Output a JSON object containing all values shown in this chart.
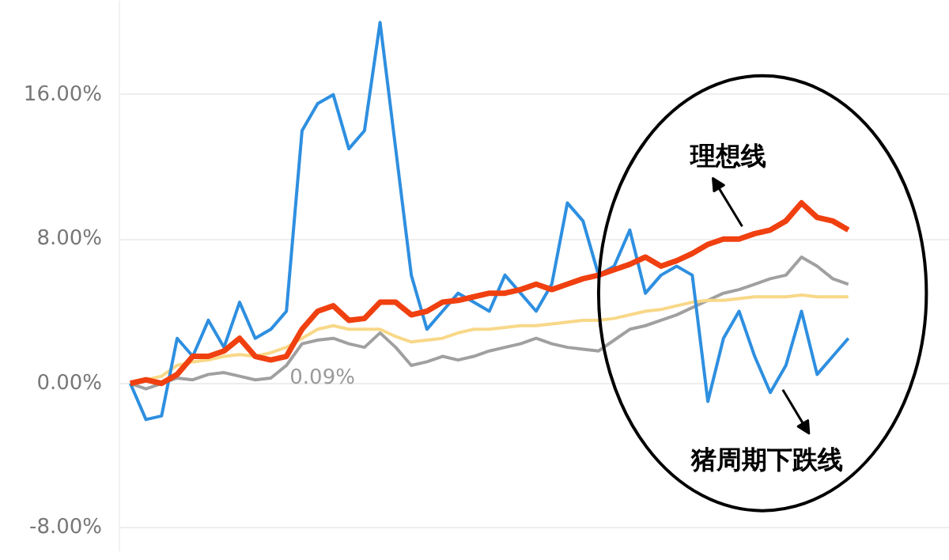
{
  "chart_data": {
    "type": "line",
    "categories": [
      null,
      null,
      null,
      null,
      null,
      null,
      null,
      null,
      null,
      null,
      null,
      null,
      null,
      null,
      null,
      null,
      null,
      null,
      null,
      null,
      null,
      null,
      null,
      null,
      null,
      null,
      null,
      null,
      null,
      null,
      null,
      null,
      null,
      null,
      null,
      null,
      null,
      null,
      null,
      null,
      null,
      null,
      null,
      null,
      null,
      null,
      null
    ],
    "series": [
      {
        "color": "#a0a0a0",
        "values": [
          0,
          -0.3,
          0,
          0.3,
          0.2,
          0.5,
          0.6,
          0.4,
          0.2,
          0.3,
          1.0,
          2.2,
          2.4,
          2.5,
          2.2,
          2.0,
          2.8,
          2.0,
          1.0,
          1.2,
          1.5,
          1.3,
          1.5,
          1.8,
          2.0,
          2.2,
          2.5,
          2.2,
          2.0,
          1.9,
          1.8,
          2.4,
          3.0,
          3.2,
          3.5,
          3.8,
          4.2,
          4.6,
          5.0,
          5.2,
          5.5,
          5.8,
          6.0,
          7.0,
          6.5,
          5.8,
          5.5
        ]
      },
      {
        "color": "#f8d888",
        "values": [
          0,
          0.2,
          0.4,
          1.0,
          1.2,
          1.3,
          1.5,
          1.6,
          1.5,
          1.7,
          2.0,
          2.5,
          3.0,
          3.2,
          3.0,
          3.0,
          3.0,
          2.6,
          2.3,
          2.4,
          2.5,
          2.8,
          3.0,
          3.0,
          3.1,
          3.2,
          3.2,
          3.3,
          3.4,
          3.5,
          3.5,
          3.6,
          3.8,
          4.0,
          4.1,
          4.3,
          4.5,
          4.6,
          4.6,
          4.7,
          4.8,
          4.8,
          4.8,
          4.9,
          4.8,
          4.8,
          4.8
        ]
      },
      {
        "color": "#2e8fe0",
        "values": [
          0,
          -2.0,
          -1.8,
          2.5,
          1.5,
          3.5,
          2.0,
          4.5,
          2.5,
          3.0,
          4.0,
          14.0,
          15.5,
          16.0,
          13.0,
          14.0,
          20.0,
          13.0,
          6.0,
          3.0,
          4.0,
          5.0,
          4.5,
          4.0,
          6.0,
          5.0,
          4.0,
          5.5,
          10.0,
          9.0,
          6.0,
          6.5,
          8.5,
          5.0,
          6.0,
          6.5,
          6.0,
          -1.0,
          2.5,
          4.0,
          1.5,
          -0.5,
          1.0,
          4.0,
          0.5,
          1.5,
          2.5
        ]
      },
      {
        "color": "#f04010",
        "values": [
          0,
          0.2,
          0,
          0.5,
          1.5,
          1.5,
          1.8,
          2.5,
          1.5,
          1.3,
          1.5,
          3.0,
          4.0,
          4.3,
          3.5,
          3.6,
          4.5,
          4.5,
          3.8,
          4.0,
          4.5,
          4.6,
          4.8,
          5.0,
          5.0,
          5.2,
          5.5,
          5.2,
          5.5,
          5.8,
          6.0,
          6.3,
          6.6,
          7.0,
          6.5,
          6.8,
          7.2,
          7.7,
          8.0,
          8.0,
          8.3,
          8.5,
          9.0,
          10.0,
          9.2,
          9.0,
          8.5
        ]
      }
    ],
    "ylim": [
      -9.3,
      21.2
    ],
    "yticks": [
      {
        "value": -8,
        "label": "-8.00%"
      },
      {
        "value": 0,
        "label": "0.00%"
      },
      {
        "value": 8,
        "label": "8.00%"
      },
      {
        "value": 16,
        "label": "16.00%"
      }
    ],
    "grid": "y",
    "tick_labels": "y",
    "annotations": [
      "0.09%",
      "理想线",
      "猪周期下跌线"
    ]
  }
}
